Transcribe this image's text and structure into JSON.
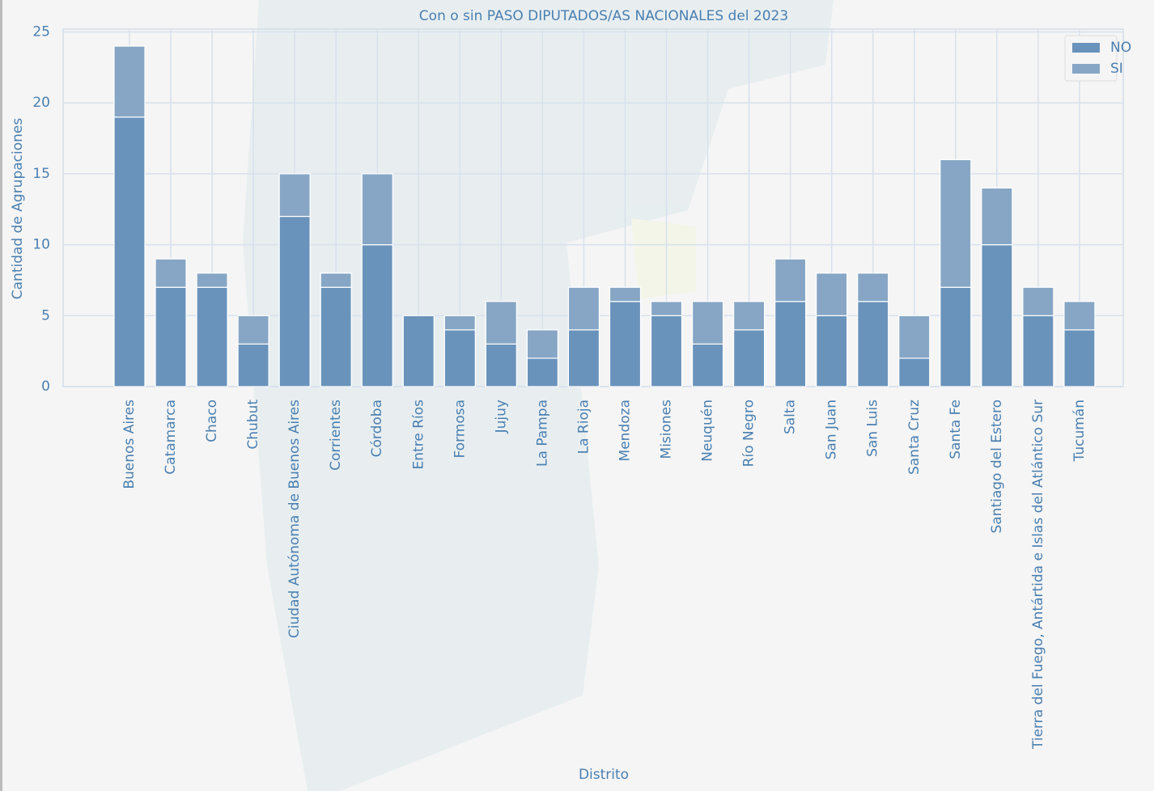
{
  "chart_data": {
    "type": "stacked_bar",
    "title": "Con o sin PASO DIPUTADOS/AS NACIONALES del 2023",
    "x_label": "Distrito",
    "y_label": "Cantidad de Agrupaciones",
    "categories": [
      "Buenos Aires",
      "Catamarca",
      "Chaco",
      "Chubut",
      "Ciudad Autónoma de Buenos Aires",
      "Corrientes",
      "Córdoba",
      "Entre Ríos",
      "Formosa",
      "Jujuy",
      "La Pampa",
      "La Rioja",
      "Mendoza",
      "Misiones",
      "Neuquén",
      "Río Negro",
      "Salta",
      "San Juan",
      "San Luis",
      "Santa Cruz",
      "Santa Fe",
      "Santiago del Estero",
      "Tierra del Fuego, Antártida e Islas del Atlántico Sur",
      "Tucumán"
    ],
    "series": [
      {
        "name": "NO",
        "color": "#6a93bb",
        "values": [
          19,
          7,
          7,
          3,
          12,
          7,
          10,
          5,
          4,
          3,
          2,
          4,
          6,
          5,
          3,
          4,
          6,
          5,
          6,
          2,
          7,
          10,
          5,
          4
        ]
      },
      {
        "name": "SI",
        "color": "#87a6c5",
        "values": [
          5,
          2,
          1,
          2,
          3,
          1,
          5,
          0,
          1,
          3,
          2,
          3,
          1,
          1,
          3,
          2,
          3,
          3,
          2,
          3,
          9,
          4,
          2,
          2
        ]
      }
    ],
    "ylim": [
      0,
      25.2
    ],
    "yticks": [
      0,
      5,
      10,
      15,
      20,
      25
    ],
    "grid": true,
    "legend": "upper right"
  }
}
